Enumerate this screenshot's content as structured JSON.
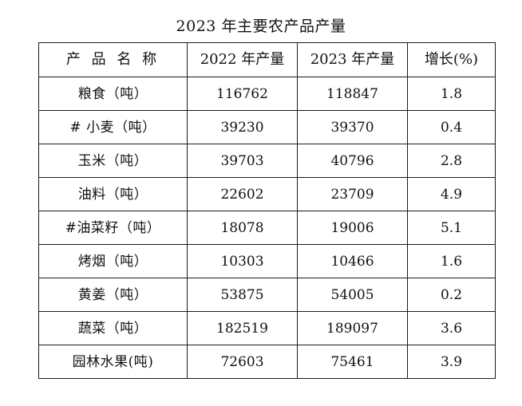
{
  "title": "2023 年主要农产品产量",
  "table": {
    "headers": [
      "产 品 名 称",
      "2022 年产量",
      "2023 年产量",
      "增长(%)"
    ],
    "rows": [
      [
        "粮食（吨）",
        "116762",
        "118847",
        "1.8"
      ],
      [
        "# 小麦（吨）",
        "39230",
        "39370",
        "0.4"
      ],
      [
        "玉米（吨）",
        "39703",
        "40796",
        "2.8"
      ],
      [
        "油料（吨）",
        "22602",
        "23709",
        "4.9"
      ],
      [
        "#油菜籽（吨）",
        "18078",
        "19006",
        "5.1"
      ],
      [
        "烤烟（吨）",
        "10303",
        "10466",
        "1.6"
      ],
      [
        "黄姜（吨）",
        "53875",
        "54005",
        "0.2"
      ],
      [
        "蔬菜（吨）",
        "182519",
        "189097",
        "3.6"
      ],
      [
        "园林水果(吨)",
        "72603",
        "75461",
        "3.9"
      ]
    ]
  }
}
